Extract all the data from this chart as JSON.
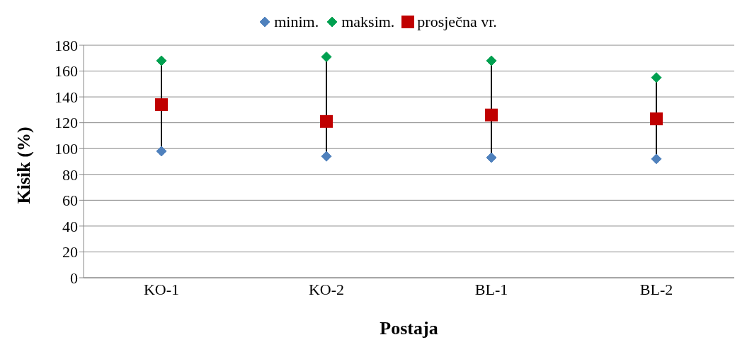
{
  "chart_data": {
    "type": "scatter",
    "xlabel": "Postaja",
    "ylabel": "Kisik (%)",
    "categories": [
      "KO-1",
      "KO-2",
      "BL-1",
      "BL-2"
    ],
    "series": [
      {
        "name": "minim.",
        "color": "#4f81bd",
        "marker": "diamond",
        "values": [
          98,
          94,
          93,
          92
        ]
      },
      {
        "name": "maksim.",
        "color": "#00a050",
        "marker": "diamond",
        "values": [
          168,
          171,
          168,
          155
        ]
      },
      {
        "name": "prosječna vr.",
        "color": "#c00000",
        "marker": "square",
        "values": [
          134,
          121,
          126,
          123
        ]
      }
    ],
    "ylim": [
      0,
      180
    ],
    "yticks": [
      0,
      20,
      40,
      60,
      80,
      100,
      120,
      140,
      160,
      180
    ],
    "grid": "y",
    "legend": "top"
  }
}
